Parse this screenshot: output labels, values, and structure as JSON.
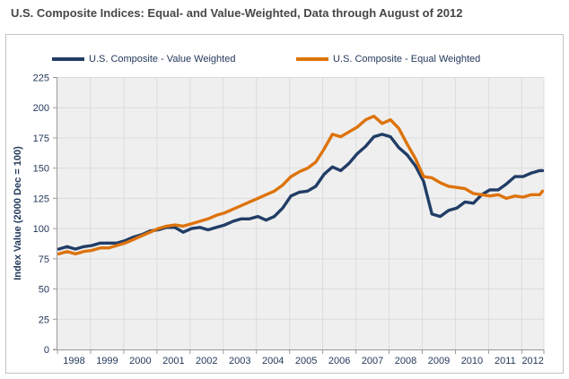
{
  "title": "U.S. Composite Indices: Equal- and Value-Weighted, Data through August of 2012",
  "chart_data": {
    "type": "line",
    "title": "U.S. Composite Indices: Equal- and Value-Weighted, Data through August of 2012",
    "xlabel": "",
    "ylabel": "Index Value (2000 Dec = 100)",
    "ylim": [
      0,
      225
    ],
    "y_ticks": [
      0,
      25,
      50,
      75,
      100,
      125,
      150,
      175,
      200,
      225
    ],
    "x_tick_years": [
      1998,
      1999,
      2000,
      2001,
      2002,
      2003,
      2004,
      2005,
      2006,
      2007,
      2008,
      2009,
      2010,
      2011,
      2012
    ],
    "x_start": "1998-01",
    "x_end": "2012-08",
    "grid": true,
    "legend_position": "top",
    "x": [
      1998.0,
      1998.25,
      1998.5,
      1998.75,
      1999.0,
      1999.25,
      1999.5,
      1999.75,
      2000.0,
      2000.25,
      2000.5,
      2000.75,
      2001.0,
      2001.25,
      2001.5,
      2001.75,
      2002.0,
      2002.25,
      2002.5,
      2002.75,
      2003.0,
      2003.25,
      2003.5,
      2003.75,
      2004.0,
      2004.25,
      2004.5,
      2004.75,
      2005.0,
      2005.25,
      2005.5,
      2005.75,
      2006.0,
      2006.25,
      2006.5,
      2006.75,
      2007.0,
      2007.25,
      2007.5,
      2007.75,
      2008.0,
      2008.25,
      2008.5,
      2008.75,
      2009.0,
      2009.25,
      2009.5,
      2009.75,
      2010.0,
      2010.25,
      2010.5,
      2010.75,
      2011.0,
      2011.25,
      2011.5,
      2011.75,
      2012.0,
      2012.25,
      2012.5,
      2012.583
    ],
    "series": [
      {
        "name": "U.S. Composite - Value Weighted",
        "color": "#213d66",
        "values": [
          83,
          85,
          83,
          85,
          86,
          88,
          88,
          88,
          90,
          93,
          95,
          98,
          99,
          101,
          101,
          97,
          100,
          101,
          99,
          101,
          103,
          106,
          108,
          108,
          110,
          107,
          110,
          117,
          127,
          130,
          131,
          135,
          145,
          151,
          148,
          154,
          162,
          168,
          176,
          178,
          176,
          167,
          161,
          152,
          139,
          112,
          110,
          115,
          117,
          122,
          121,
          128,
          132,
          132,
          137,
          143,
          143,
          146,
          148,
          148
        ]
      },
      {
        "name": "U.S. Composite - Equal Weighted",
        "color": "#dd730b",
        "values": [
          79,
          81,
          79,
          81,
          82,
          84,
          84,
          86,
          88,
          91,
          94,
          97,
          100,
          102,
          103,
          102,
          104,
          106,
          108,
          111,
          113,
          116,
          119,
          122,
          125,
          128,
          131,
          136,
          143,
          147,
          150,
          155,
          166,
          178,
          176,
          180,
          184,
          190,
          193,
          187,
          190,
          183,
          170,
          158,
          143,
          142,
          138,
          135,
          134,
          133,
          129,
          128,
          127,
          128,
          125,
          127,
          126,
          128,
          128,
          131
        ]
      }
    ],
    "colors": {
      "plot_background": "#efefef",
      "gridline": "#dcdcdc",
      "axis": "#9a9a9a",
      "tick_text": "#24395b",
      "title_text": "#474747",
      "frame_border": "#c3c3c3"
    }
  }
}
